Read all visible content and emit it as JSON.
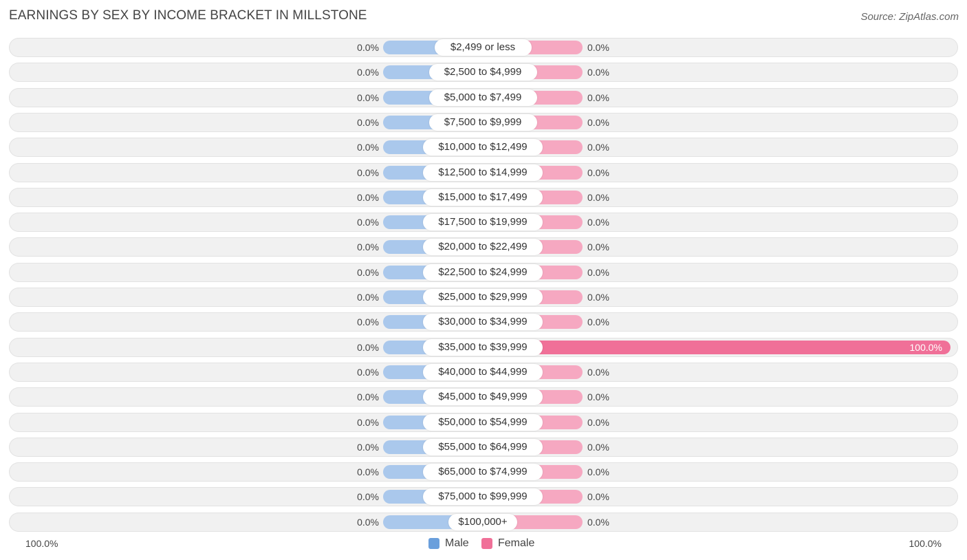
{
  "header": {
    "title": "EARNINGS BY SEX BY INCOME BRACKET IN MILLSTONE",
    "source": "Source: ZipAtlas.com"
  },
  "colors": {
    "male": "#aac8ec",
    "female": "#f6a8c1",
    "female_highlight": "#f07098",
    "legend_male": "#6a9fdc",
    "legend_female": "#f07098"
  },
  "axis": {
    "left_label": "100.0%",
    "right_label": "100.0%"
  },
  "legend": {
    "male": "Male",
    "female": "Female"
  },
  "chart_data": {
    "type": "bar",
    "orientation": "horizontal-diverging",
    "title": "EARNINGS BY SEX BY INCOME BRACKET IN MILLSTONE",
    "xlim": [
      -100,
      100
    ],
    "categories": [
      "$2,499 or less",
      "$2,500 to $4,999",
      "$5,000 to $7,499",
      "$7,500 to $9,999",
      "$10,000 to $12,499",
      "$12,500 to $14,999",
      "$15,000 to $17,499",
      "$17,500 to $19,999",
      "$20,000 to $22,499",
      "$22,500 to $24,999",
      "$25,000 to $29,999",
      "$30,000 to $34,999",
      "$35,000 to $39,999",
      "$40,000 to $44,999",
      "$45,000 to $49,999",
      "$50,000 to $54,999",
      "$55,000 to $64,999",
      "$65,000 to $74,999",
      "$75,000 to $99,999",
      "$100,000+"
    ],
    "series": [
      {
        "name": "Male",
        "values": [
          0,
          0,
          0,
          0,
          0,
          0,
          0,
          0,
          0,
          0,
          0,
          0,
          0,
          0,
          0,
          0,
          0,
          0,
          0,
          0
        ],
        "labels": [
          "0.0%",
          "0.0%",
          "0.0%",
          "0.0%",
          "0.0%",
          "0.0%",
          "0.0%",
          "0.0%",
          "0.0%",
          "0.0%",
          "0.0%",
          "0.0%",
          "0.0%",
          "0.0%",
          "0.0%",
          "0.0%",
          "0.0%",
          "0.0%",
          "0.0%",
          "0.0%"
        ]
      },
      {
        "name": "Female",
        "values": [
          0,
          0,
          0,
          0,
          0,
          0,
          0,
          0,
          0,
          0,
          0,
          0,
          100,
          0,
          0,
          0,
          0,
          0,
          0,
          0
        ],
        "labels": [
          "0.0%",
          "0.0%",
          "0.0%",
          "0.0%",
          "0.0%",
          "0.0%",
          "0.0%",
          "0.0%",
          "0.0%",
          "0.0%",
          "0.0%",
          "0.0%",
          "100.0%",
          "0.0%",
          "0.0%",
          "0.0%",
          "0.0%",
          "0.0%",
          "0.0%",
          "0.0%"
        ]
      }
    ]
  }
}
